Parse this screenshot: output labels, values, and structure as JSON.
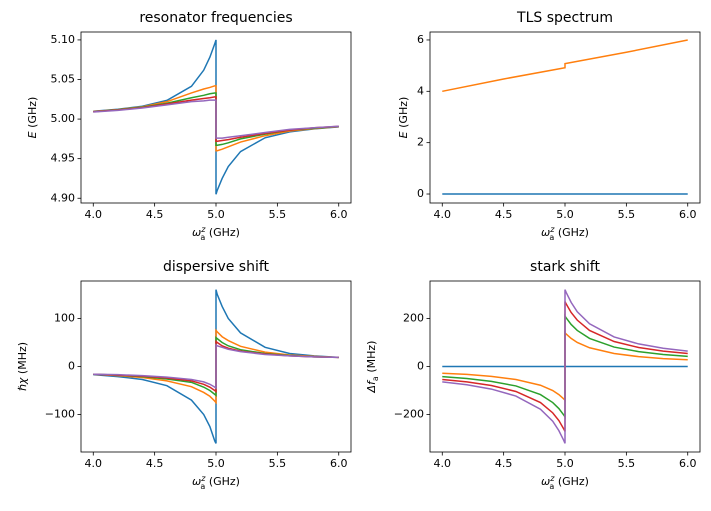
{
  "chart_data": [
    {
      "type": "line",
      "title": "resonator frequencies",
      "xlabel": {
        "symbol": "ω",
        "sub": "a",
        "sup": "z",
        "unit": "(GHz)"
      },
      "ylabel": {
        "symbol": "E",
        "unit": "(GHz)"
      },
      "x": [
        4.0,
        4.2,
        4.4,
        4.6,
        4.8,
        4.9,
        4.95,
        4.99,
        5.0,
        5.0,
        5.01,
        5.05,
        5.1,
        5.2,
        5.4,
        5.6,
        5.8,
        6.0
      ],
      "series": [
        {
          "color": "#1f77b4",
          "values": [
            5.0099,
            5.0124,
            5.0162,
            5.0236,
            5.0414,
            5.0618,
            5.0781,
            5.0951,
            5.1,
            4.905,
            4.91,
            4.925,
            4.94,
            4.959,
            4.9764,
            4.9838,
            4.9876,
            4.9901
          ]
        },
        {
          "color": "#ff7f0e",
          "values": [
            5.0095,
            5.012,
            5.0155,
            5.022,
            5.033,
            5.038,
            5.04,
            5.042,
            5.042,
            4.96,
            4.96,
            4.962,
            4.965,
            4.971,
            4.979,
            4.985,
            4.988,
            4.9905
          ]
        },
        {
          "color": "#2ca02c",
          "values": [
            5.0093,
            5.0118,
            5.015,
            5.02,
            5.027,
            5.03,
            5.032,
            5.033,
            5.033,
            4.967,
            4.967,
            4.968,
            4.97,
            4.975,
            4.981,
            4.986,
            4.9885,
            4.9907
          ]
        },
        {
          "color": "#d62728",
          "values": [
            5.0092,
            5.0115,
            5.0145,
            5.019,
            5.024,
            5.026,
            5.027,
            5.028,
            5.028,
            4.972,
            4.972,
            4.973,
            4.974,
            4.977,
            4.982,
            4.986,
            4.989,
            4.9908
          ]
        },
        {
          "color": "#9467bd",
          "values": [
            5.009,
            5.011,
            5.014,
            5.018,
            5.022,
            5.023,
            5.024,
            5.024,
            5.024,
            4.976,
            4.976,
            4.976,
            4.977,
            4.979,
            4.983,
            4.987,
            4.989,
            4.991
          ]
        }
      ],
      "xlim": [
        3.9,
        6.1
      ],
      "ylim": [
        4.894,
        5.11
      ],
      "xticks": [
        {
          "value": 4.0,
          "label": "4.0"
        },
        {
          "value": 4.5,
          "label": "4.5"
        },
        {
          "value": 5.0,
          "label": "5.0"
        },
        {
          "value": 5.5,
          "label": "5.5"
        },
        {
          "value": 6.0,
          "label": "6.0"
        }
      ],
      "yticks": [
        {
          "value": 4.9,
          "label": "4.90"
        },
        {
          "value": 4.95,
          "label": "4.95"
        },
        {
          "value": 5.0,
          "label": "5.00"
        },
        {
          "value": 5.05,
          "label": "5.05"
        },
        {
          "value": 5.1,
          "label": "5.10"
        }
      ]
    },
    {
      "type": "line",
      "title": "TLS spectrum",
      "xlabel": {
        "symbol": "ω",
        "sub": "a",
        "sup": "z",
        "unit": "(GHz)"
      },
      "ylabel": {
        "symbol": "E",
        "unit": "(GHz)"
      },
      "x": [
        4.0,
        4.5,
        5.0,
        5.0,
        5.5,
        6.0
      ],
      "series": [
        {
          "color": "#1f77b4",
          "values": [
            0,
            0,
            0,
            0,
            0,
            0
          ]
        },
        {
          "color": "#ff7f0e",
          "values": [
            4.0,
            4.48,
            4.92,
            5.08,
            5.52,
            6.0
          ]
        }
      ],
      "xlim": [
        3.9,
        6.1
      ],
      "ylim": [
        -0.35,
        6.31
      ],
      "xticks": [
        {
          "value": 4.0,
          "label": "4.0"
        },
        {
          "value": 4.5,
          "label": "4.5"
        },
        {
          "value": 5.0,
          "label": "5.0"
        },
        {
          "value": 5.5,
          "label": "5.5"
        },
        {
          "value": 6.0,
          "label": "6.0"
        }
      ],
      "yticks": [
        0,
        2,
        4,
        6
      ]
    },
    {
      "type": "line",
      "title": "dispersive shift",
      "xlabel": {
        "symbol": "ω",
        "sub": "a",
        "sup": "z",
        "unit": "(GHz)"
      },
      "ylabel": {
        "symbol": "ℏχ",
        "unit": "(MHz)"
      },
      "x": [
        4.0,
        4.2,
        4.4,
        4.6,
        4.8,
        4.9,
        4.95,
        4.99,
        5.0,
        5.0,
        5.01,
        5.05,
        5.1,
        5.2,
        5.4,
        5.6,
        5.8,
        6.0
      ],
      "series": [
        {
          "color": "#1f77b4",
          "values": [
            -17,
            -21,
            -27,
            -40,
            -70,
            -100,
            -125,
            -155,
            -160,
            160,
            150,
            125,
            100,
            70,
            40,
            27,
            22,
            19
          ]
        },
        {
          "color": "#ff7f0e",
          "values": [
            -16,
            -19,
            -23,
            -30,
            -42,
            -54,
            -62,
            -72,
            -75,
            75,
            72,
            62,
            54,
            42,
            30,
            24,
            21,
            19
          ]
        },
        {
          "color": "#2ca02c",
          "values": [
            -16,
            -18,
            -21,
            -26,
            -33,
            -43,
            -50,
            -58,
            -60,
            60,
            58,
            50,
            43,
            35,
            27,
            23,
            20,
            19
          ]
        },
        {
          "color": "#d62728",
          "values": [
            -16,
            -18,
            -20,
            -24,
            -30,
            -37,
            -43,
            -50,
            -52,
            52,
            50,
            43,
            38,
            32,
            26,
            22,
            20,
            19
          ]
        },
        {
          "color": "#9467bd",
          "values": [
            -16,
            -17,
            -19,
            -22,
            -27,
            -32,
            -37,
            -43,
            -45,
            45,
            43,
            40,
            36,
            31,
            25,
            22,
            20,
            19
          ]
        }
      ],
      "xlim": [
        3.9,
        6.1
      ],
      "ylim": [
        -178,
        178
      ],
      "xticks": [
        {
          "value": 4.0,
          "label": "4.0"
        },
        {
          "value": 4.5,
          "label": "4.5"
        },
        {
          "value": 5.0,
          "label": "5.0"
        },
        {
          "value": 5.5,
          "label": "5.5"
        },
        {
          "value": 6.0,
          "label": "6.0"
        }
      ],
      "yticks": [
        {
          "value": -100,
          "label": "−100"
        },
        0,
        100
      ]
    },
    {
      "type": "line",
      "title": "stark shift",
      "xlabel": {
        "symbol": "ω",
        "sub": "a",
        "sup": "z",
        "unit": "(GHz)"
      },
      "ylabel": {
        "symbol": "Δf",
        "sub": "a",
        "unit": "(MHz)"
      },
      "x": [
        4.0,
        4.2,
        4.4,
        4.6,
        4.8,
        4.9,
        4.95,
        4.99,
        5.0,
        5.0,
        5.01,
        5.05,
        5.1,
        5.2,
        5.4,
        5.6,
        5.8,
        6.0
      ],
      "series": [
        {
          "color": "#1f77b4",
          "values": [
            0,
            0,
            0,
            0,
            0,
            0,
            0,
            0,
            0,
            0,
            0,
            0,
            0,
            0,
            0,
            0,
            0,
            0
          ]
        },
        {
          "color": "#ff7f0e",
          "values": [
            -28,
            -33,
            -41,
            -54,
            -78,
            -100,
            -117,
            -135,
            -140,
            140,
            135,
            117,
            100,
            78,
            54,
            41,
            33,
            28
          ]
        },
        {
          "color": "#2ca02c",
          "values": [
            -42,
            -50,
            -62,
            -81,
            -117,
            -150,
            -175,
            -202,
            -210,
            210,
            202,
            175,
            150,
            117,
            81,
            62,
            50,
            42
          ]
        },
        {
          "color": "#d62728",
          "values": [
            -54,
            -64,
            -79,
            -104,
            -150,
            -193,
            -225,
            -260,
            -270,
            270,
            260,
            225,
            193,
            150,
            104,
            79,
            64,
            54
          ]
        },
        {
          "color": "#9467bd",
          "values": [
            -64,
            -76,
            -94,
            -123,
            -178,
            -228,
            -267,
            -308,
            -320,
            320,
            308,
            267,
            228,
            178,
            123,
            94,
            76,
            64
          ]
        }
      ],
      "xlim": [
        3.9,
        6.1
      ],
      "ylim": [
        -356,
        356
      ],
      "xticks": [
        {
          "value": 4.0,
          "label": "4.0"
        },
        {
          "value": 4.5,
          "label": "4.5"
        },
        {
          "value": 5.0,
          "label": "5.0"
        },
        {
          "value": 5.5,
          "label": "5.5"
        },
        {
          "value": 6.0,
          "label": "6.0"
        }
      ],
      "yticks": [
        {
          "value": -200,
          "label": "−200"
        },
        0,
        200
      ]
    }
  ]
}
